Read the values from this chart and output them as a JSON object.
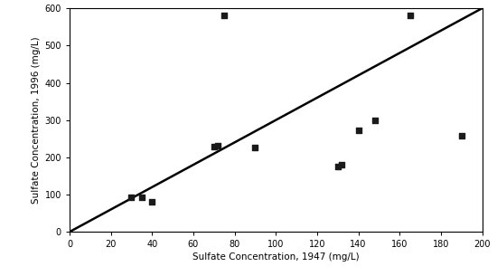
{
  "x_data": [
    30,
    35,
    40,
    70,
    72,
    90,
    75,
    130,
    132,
    140,
    148,
    165,
    190
  ],
  "y_data": [
    93,
    93,
    80,
    228,
    230,
    227,
    580,
    175,
    180,
    272,
    298,
    580,
    258
  ],
  "xlabel": "Sulfate Concentration, 1947 (mg/L)",
  "ylabel": "Sulfate Concentration, 1996 (mg/L)",
  "xlim": [
    0,
    200
  ],
  "ylim": [
    0,
    600
  ],
  "xticks": [
    0,
    20,
    40,
    60,
    80,
    100,
    120,
    140,
    160,
    180,
    200
  ],
  "yticks": [
    0,
    100,
    200,
    300,
    400,
    500,
    600
  ],
  "line_x": [
    0,
    200
  ],
  "line_y": [
    0,
    600
  ],
  "marker_color": "#1a1a1a",
  "line_color": "#000000",
  "bg_color": "#ffffff",
  "marker_size": 4.5,
  "label_fontsize": 7.5,
  "tick_fontsize": 7,
  "line_width": 1.8
}
